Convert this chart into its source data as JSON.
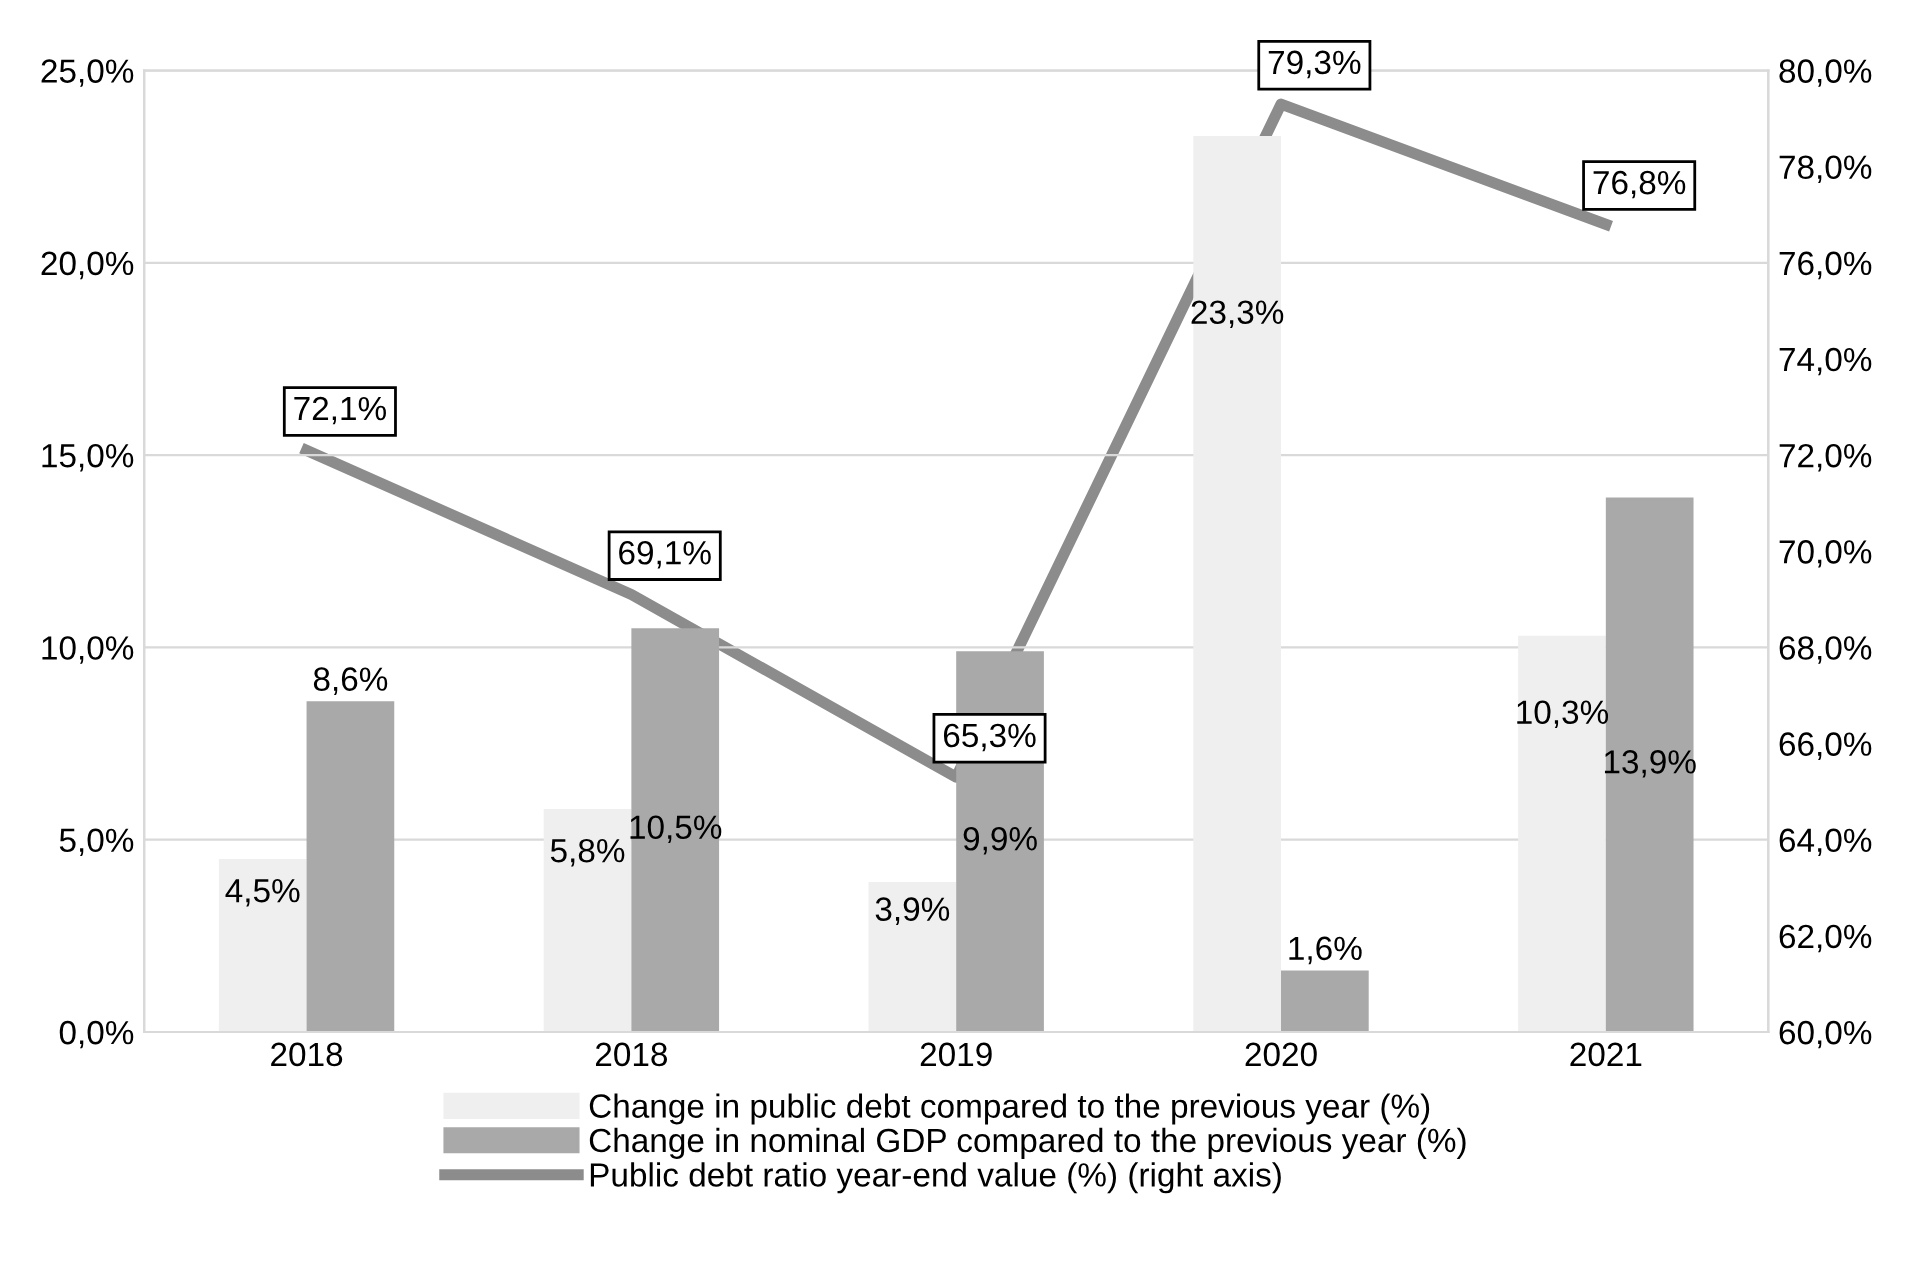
{
  "chart_data": {
    "type": "bar",
    "categories": [
      "2018",
      "2018",
      "2019",
      "2020",
      "2021"
    ],
    "series": [
      {
        "name": "Change in public debt compared to the previous year (%)",
        "color": "#efefef",
        "values": [
          4.5,
          5.8,
          3.9,
          23.3,
          10.3
        ],
        "value_labels": [
          "4,5%",
          "5,8%",
          "3,9%",
          "23,3%",
          "10,3%"
        ]
      },
      {
        "name": "Change in nominal GDP compared to the previous year (%)",
        "color": "#a9a9a9",
        "values": [
          8.6,
          10.5,
          9.9,
          1.6,
          13.9
        ],
        "value_labels": [
          "8,6%",
          "10,5%",
          "9,9%",
          "1,6%",
          "13,9%"
        ]
      },
      {
        "name": "Public debt ratio year-end value (%) (right axis)",
        "type": "line",
        "axis": "y2",
        "color": "#8c8c8c",
        "values": [
          72.1,
          69.1,
          65.3,
          79.3,
          76.8
        ],
        "value_labels": [
          "72,1%",
          "69,1%",
          "65,3%",
          "79,3%",
          "76,8%"
        ]
      }
    ],
    "ylim": [
      0,
      25
    ],
    "yticks": [
      {
        "value": 0,
        "label": "0,0%"
      },
      {
        "value": 5,
        "label": "5,0%"
      },
      {
        "value": 10,
        "label": "10,0%"
      },
      {
        "value": 15,
        "label": "15,0%"
      },
      {
        "value": 20,
        "label": "20,0%"
      },
      {
        "value": 25,
        "label": "25,0%"
      }
    ],
    "y2lim": [
      60,
      80
    ],
    "y2ticks": [
      {
        "value": 60,
        "label": "60,0%"
      },
      {
        "value": 62,
        "label": "62,0%"
      },
      {
        "value": 64,
        "label": "64,0%"
      },
      {
        "value": 66,
        "label": "66,0%"
      },
      {
        "value": 68,
        "label": "68,0%"
      },
      {
        "value": 70,
        "label": "70,0%"
      },
      {
        "value": 72,
        "label": "72,0%"
      },
      {
        "value": 74,
        "label": "74,0%"
      },
      {
        "value": 76,
        "label": "76,0%"
      },
      {
        "value": 78,
        "label": "78,0%"
      },
      {
        "value": 80,
        "label": "80,0%"
      }
    ],
    "grid": "y",
    "legend": "bottom",
    "line_style": "solid",
    "marker": "none"
  }
}
